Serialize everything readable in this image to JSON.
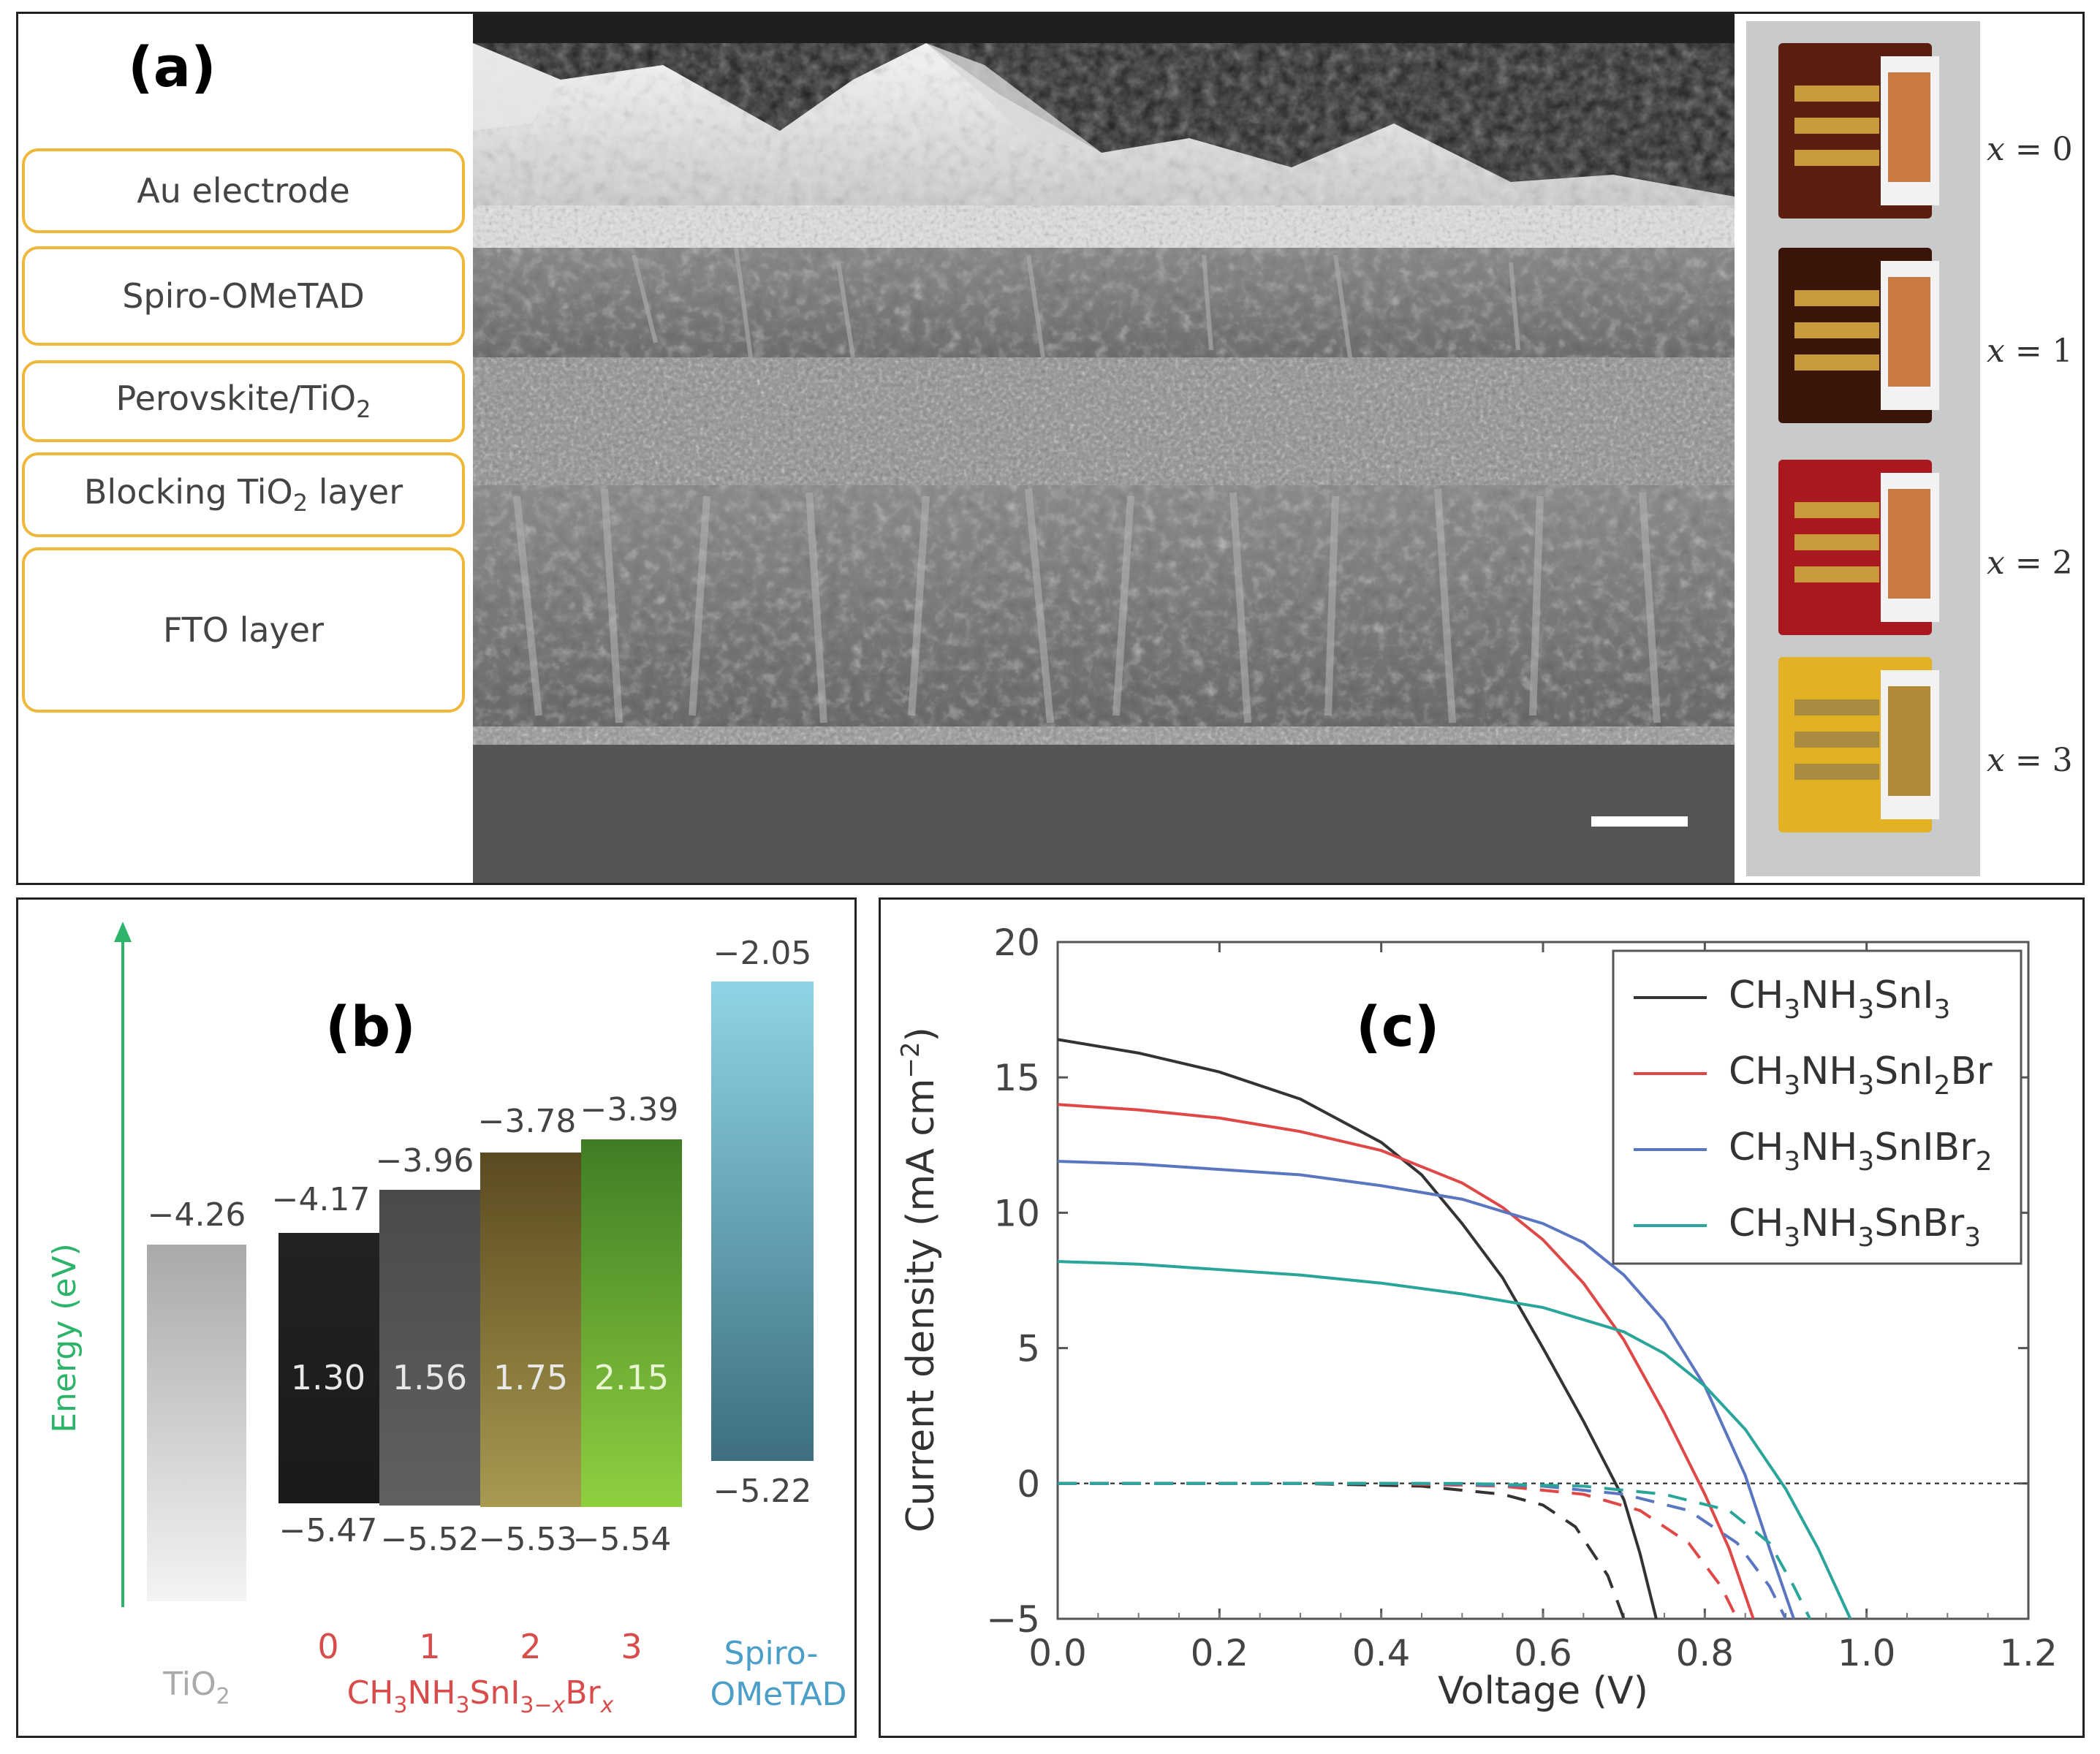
{
  "panel_a": {
    "letter": "(a)",
    "layers": [
      {
        "label": "Au electrode"
      },
      {
        "label": "Spiro-OMeTAD"
      },
      {
        "label": "Perovskite/TiO",
        "sub": "2"
      },
      {
        "label": "Blocking TiO",
        "sub": "2",
        "suffix": " layer"
      },
      {
        "label": "FTO layer"
      }
    ],
    "photos": [
      {
        "var": "x",
        "eq": " = 0",
        "color": "#5a1d0e"
      },
      {
        "var": "x",
        "eq": " = 1",
        "color": "#3b1409"
      },
      {
        "var": "x",
        "eq": " = 2",
        "color": "#a8181c"
      },
      {
        "var": "x",
        "eq": " = 3",
        "color": "#e2b224"
      }
    ]
  },
  "panel_b": {
    "letter": "(b)",
    "axis_label": "Energy (eV)",
    "axis_color": "#2db46a",
    "tio2": {
      "label_main": "TiO",
      "label_sub": "2",
      "value": "−4.26"
    },
    "bars": [
      {
        "index": "0",
        "top": "−4.17",
        "gap": "1.30",
        "bottom": "−5.47",
        "color_top": "#222222",
        "color_bottom": "#1a1a1a"
      },
      {
        "index": "1",
        "top": "−3.96",
        "gap": "1.56",
        "bottom": "−5.52",
        "color_top": "#4a4a4a",
        "color_bottom": "#606060"
      },
      {
        "index": "2",
        "top": "−3.78",
        "gap": "1.75",
        "bottom": "−5.53",
        "color_top": "#5a4a20",
        "color_bottom": "#a89a50"
      },
      {
        "index": "3",
        "top": "−3.39",
        "gap": "2.15",
        "bottom": "−5.54",
        "color_top": "#3f7d25",
        "color_bottom": "#8fd040"
      }
    ],
    "formula": {
      "p1": "CH",
      "s1": "3",
      "p2": "NH",
      "s2": "3",
      "p3": "SnI",
      "s3": "3−",
      "s3i": "x",
      "p4": "Br",
      "s4": "x"
    },
    "formula_color": "#d94c4c",
    "spiro": {
      "top": "−2.05",
      "bottom": "−5.22",
      "label1": "Spiro-",
      "label2": "OMeTAD",
      "color": "#4a9ec8"
    }
  },
  "panel_c": {
    "letter": "(c)",
    "xlabel": "Voltage (V)",
    "ylabel_main": "Current density (mA cm",
    "ylabel_sup": "−2",
    "ylabel_end": ")",
    "xticks": [
      "0.0",
      "0.2",
      "0.4",
      "0.6",
      "0.8",
      "1.0",
      "1.2"
    ],
    "yticks": [
      "−5",
      "0",
      "5",
      "10",
      "15",
      "20"
    ]
  },
  "chart_data": {
    "type": "line",
    "title": "(c)",
    "xlabel": "Voltage (V)",
    "ylabel": "Current density (mA cm−2)",
    "xlim": [
      0,
      1.2
    ],
    "ylim": [
      -5,
      20
    ],
    "series": [
      {
        "name": "CH3NH3SnI3",
        "color": "#333333",
        "legend": {
          "p1": "CH",
          "s1": "3",
          "p2": "NH",
          "s2": "3",
          "p3": "SnI",
          "s3": "3",
          "p4": ""
        },
        "x": [
          0,
          0.1,
          0.2,
          0.3,
          0.4,
          0.45,
          0.5,
          0.55,
          0.6,
          0.65,
          0.7,
          0.72,
          0.74
        ],
        "y": [
          16.4,
          15.9,
          15.2,
          14.2,
          12.6,
          11.4,
          9.6,
          7.6,
          5.0,
          2.3,
          -0.6,
          -2.6,
          -5.0
        ],
        "dark_x": [
          0,
          0.3,
          0.45,
          0.55,
          0.6,
          0.64,
          0.68,
          0.7
        ],
        "dark_y": [
          0,
          0,
          -0.1,
          -0.4,
          -0.8,
          -1.6,
          -3.4,
          -5.0
        ]
      },
      {
        "name": "CH3NH3SnI2Br",
        "color": "#e04848",
        "legend": {
          "p1": "CH",
          "s1": "3",
          "p2": "NH",
          "s2": "3",
          "p3": "SnI",
          "s3": "2",
          "p4": "Br"
        },
        "x": [
          0,
          0.1,
          0.2,
          0.3,
          0.4,
          0.5,
          0.55,
          0.6,
          0.65,
          0.7,
          0.75,
          0.8,
          0.83,
          0.86
        ],
        "y": [
          14.0,
          13.8,
          13.5,
          13.0,
          12.3,
          11.1,
          10.2,
          9.0,
          7.4,
          5.3,
          2.6,
          -0.4,
          -2.4,
          -5.0
        ],
        "dark_x": [
          0,
          0.4,
          0.55,
          0.65,
          0.72,
          0.78,
          0.82,
          0.84
        ],
        "dark_y": [
          0,
          0,
          -0.1,
          -0.4,
          -1.0,
          -2.2,
          -3.8,
          -5.0
        ]
      },
      {
        "name": "CH3NH3SnIBr2",
        "color": "#5a76c0",
        "legend": {
          "p1": "CH",
          "s1": "3",
          "p2": "NH",
          "s2": "3",
          "p3": "SnIBr",
          "s3": "2",
          "p4": ""
        },
        "x": [
          0,
          0.1,
          0.2,
          0.3,
          0.4,
          0.5,
          0.6,
          0.65,
          0.7,
          0.75,
          0.8,
          0.85,
          0.88,
          0.91
        ],
        "y": [
          11.9,
          11.8,
          11.6,
          11.4,
          11.0,
          10.5,
          9.6,
          8.9,
          7.7,
          6.0,
          3.6,
          0.3,
          -2.4,
          -5.0
        ],
        "dark_x": [
          0,
          0.45,
          0.6,
          0.7,
          0.78,
          0.84,
          0.88,
          0.9
        ],
        "dark_y": [
          0,
          0,
          -0.1,
          -0.4,
          -1.0,
          -2.2,
          -3.8,
          -5.0
        ]
      },
      {
        "name": "CH3NH3SnBr3",
        "color": "#2aa59a",
        "legend": {
          "p1": "CH",
          "s1": "3",
          "p2": "NH",
          "s2": "3",
          "p3": "SnBr",
          "s3": "3",
          "p4": ""
        },
        "x": [
          0,
          0.1,
          0.2,
          0.3,
          0.4,
          0.5,
          0.6,
          0.7,
          0.75,
          0.8,
          0.85,
          0.9,
          0.94,
          0.98
        ],
        "y": [
          8.2,
          8.1,
          7.9,
          7.7,
          7.4,
          7.0,
          6.5,
          5.6,
          4.8,
          3.6,
          2.0,
          -0.2,
          -2.4,
          -5.0
        ],
        "dark_x": [
          0,
          0.5,
          0.65,
          0.75,
          0.83,
          0.88,
          0.91,
          0.93
        ],
        "dark_y": [
          0,
          0,
          -0.1,
          -0.4,
          -1.0,
          -2.2,
          -3.8,
          -5.0
        ]
      }
    ]
  }
}
